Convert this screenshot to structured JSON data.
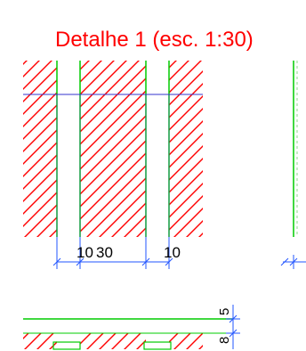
{
  "title": "Detalhe 1 (esc. 1:30)",
  "dimensions_bottom": [
    "10",
    "30",
    "10"
  ],
  "dimensions_right": [
    "5",
    "8"
  ],
  "colors": {
    "title": "#ff0000",
    "hatch": "#ff0000",
    "wall_edge": "#00cc00",
    "level_line": "#3333cc",
    "dimension_line": "#2255ff",
    "text": "#000000"
  }
}
